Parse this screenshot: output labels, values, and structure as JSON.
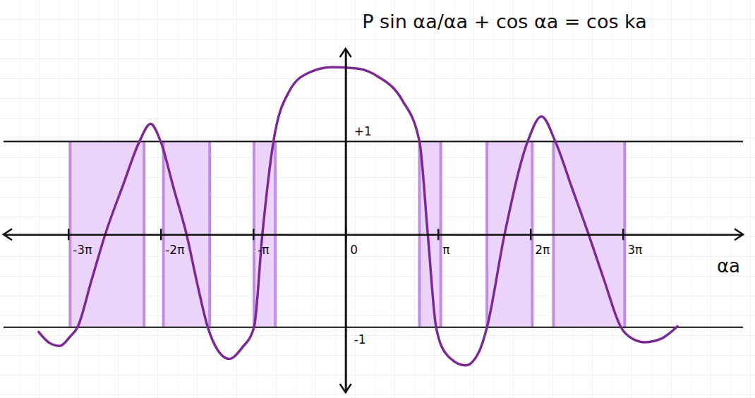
{
  "chart_data": {
    "type": "line",
    "title": "P sin αa/αa + cos αa = cos ka",
    "x_label": "αa",
    "x": [
      -3.32,
      -3.2,
      -3.09,
      -2.98,
      -2.9,
      -2.75,
      -2.6,
      -2.4,
      -2.23,
      -2.11,
      -2.0,
      -1.86,
      -1.72,
      -1.6,
      -1.49,
      -1.38,
      -1.26,
      -1.12,
      -0.99,
      -0.9,
      -0.78,
      -0.61,
      -0.4,
      -0.15,
      0.1,
      0.35,
      0.61,
      0.8,
      0.89,
      0.98,
      1.1,
      1.3,
      1.45,
      1.53,
      1.72,
      1.97,
      2.12,
      2.27,
      2.45,
      2.63,
      2.8,
      2.98,
      3.1,
      3.24,
      3.42,
      3.59
    ],
    "values": [
      -1.05,
      -1.17,
      -1.2,
      -1.1,
      -1.0,
      -0.5,
      0,
      0.55,
      1.0,
      1.19,
      1.0,
      0.5,
      0,
      -0.55,
      -1.0,
      -1.25,
      -1.34,
      -1.22,
      -1.0,
      0,
      1.0,
      1.54,
      1.74,
      1.8,
      1.79,
      1.7,
      1.45,
      1.0,
      0,
      -1.0,
      -1.3,
      -1.41,
      -1.25,
      -1.0,
      0,
      1.0,
      1.27,
      1.0,
      0.5,
      0,
      -0.5,
      -1.0,
      -1.12,
      -1.16,
      -1.12,
      -0.99
    ],
    "color": "#7b2a94",
    "bands": [
      [
        -2.98,
        -2.18
      ],
      [
        -1.97,
        -1.47
      ],
      [
        -0.99,
        -0.76
      ],
      [
        0.8,
        1.03
      ],
      [
        1.53,
        2.02
      ],
      [
        2.25,
        3.02
      ]
    ],
    "xlim": [
      -3.7,
      4.3
    ],
    "ylim": [
      -1.7,
      2.0
    ],
    "xticks": [
      {
        "value": -3,
        "label": "-3π"
      },
      {
        "value": -2,
        "label": "-2π"
      },
      {
        "value": -1,
        "label": "-π"
      },
      0,
      {
        "value": 1,
        "label": "π"
      },
      {
        "value": 2,
        "label": "2π"
      },
      {
        "value": 3,
        "label": "3π"
      }
    ],
    "yticks": [
      {
        "value": -1,
        "label": "-1"
      },
      {
        "value": 1,
        "label": "+1"
      }
    ],
    "grid": true
  }
}
